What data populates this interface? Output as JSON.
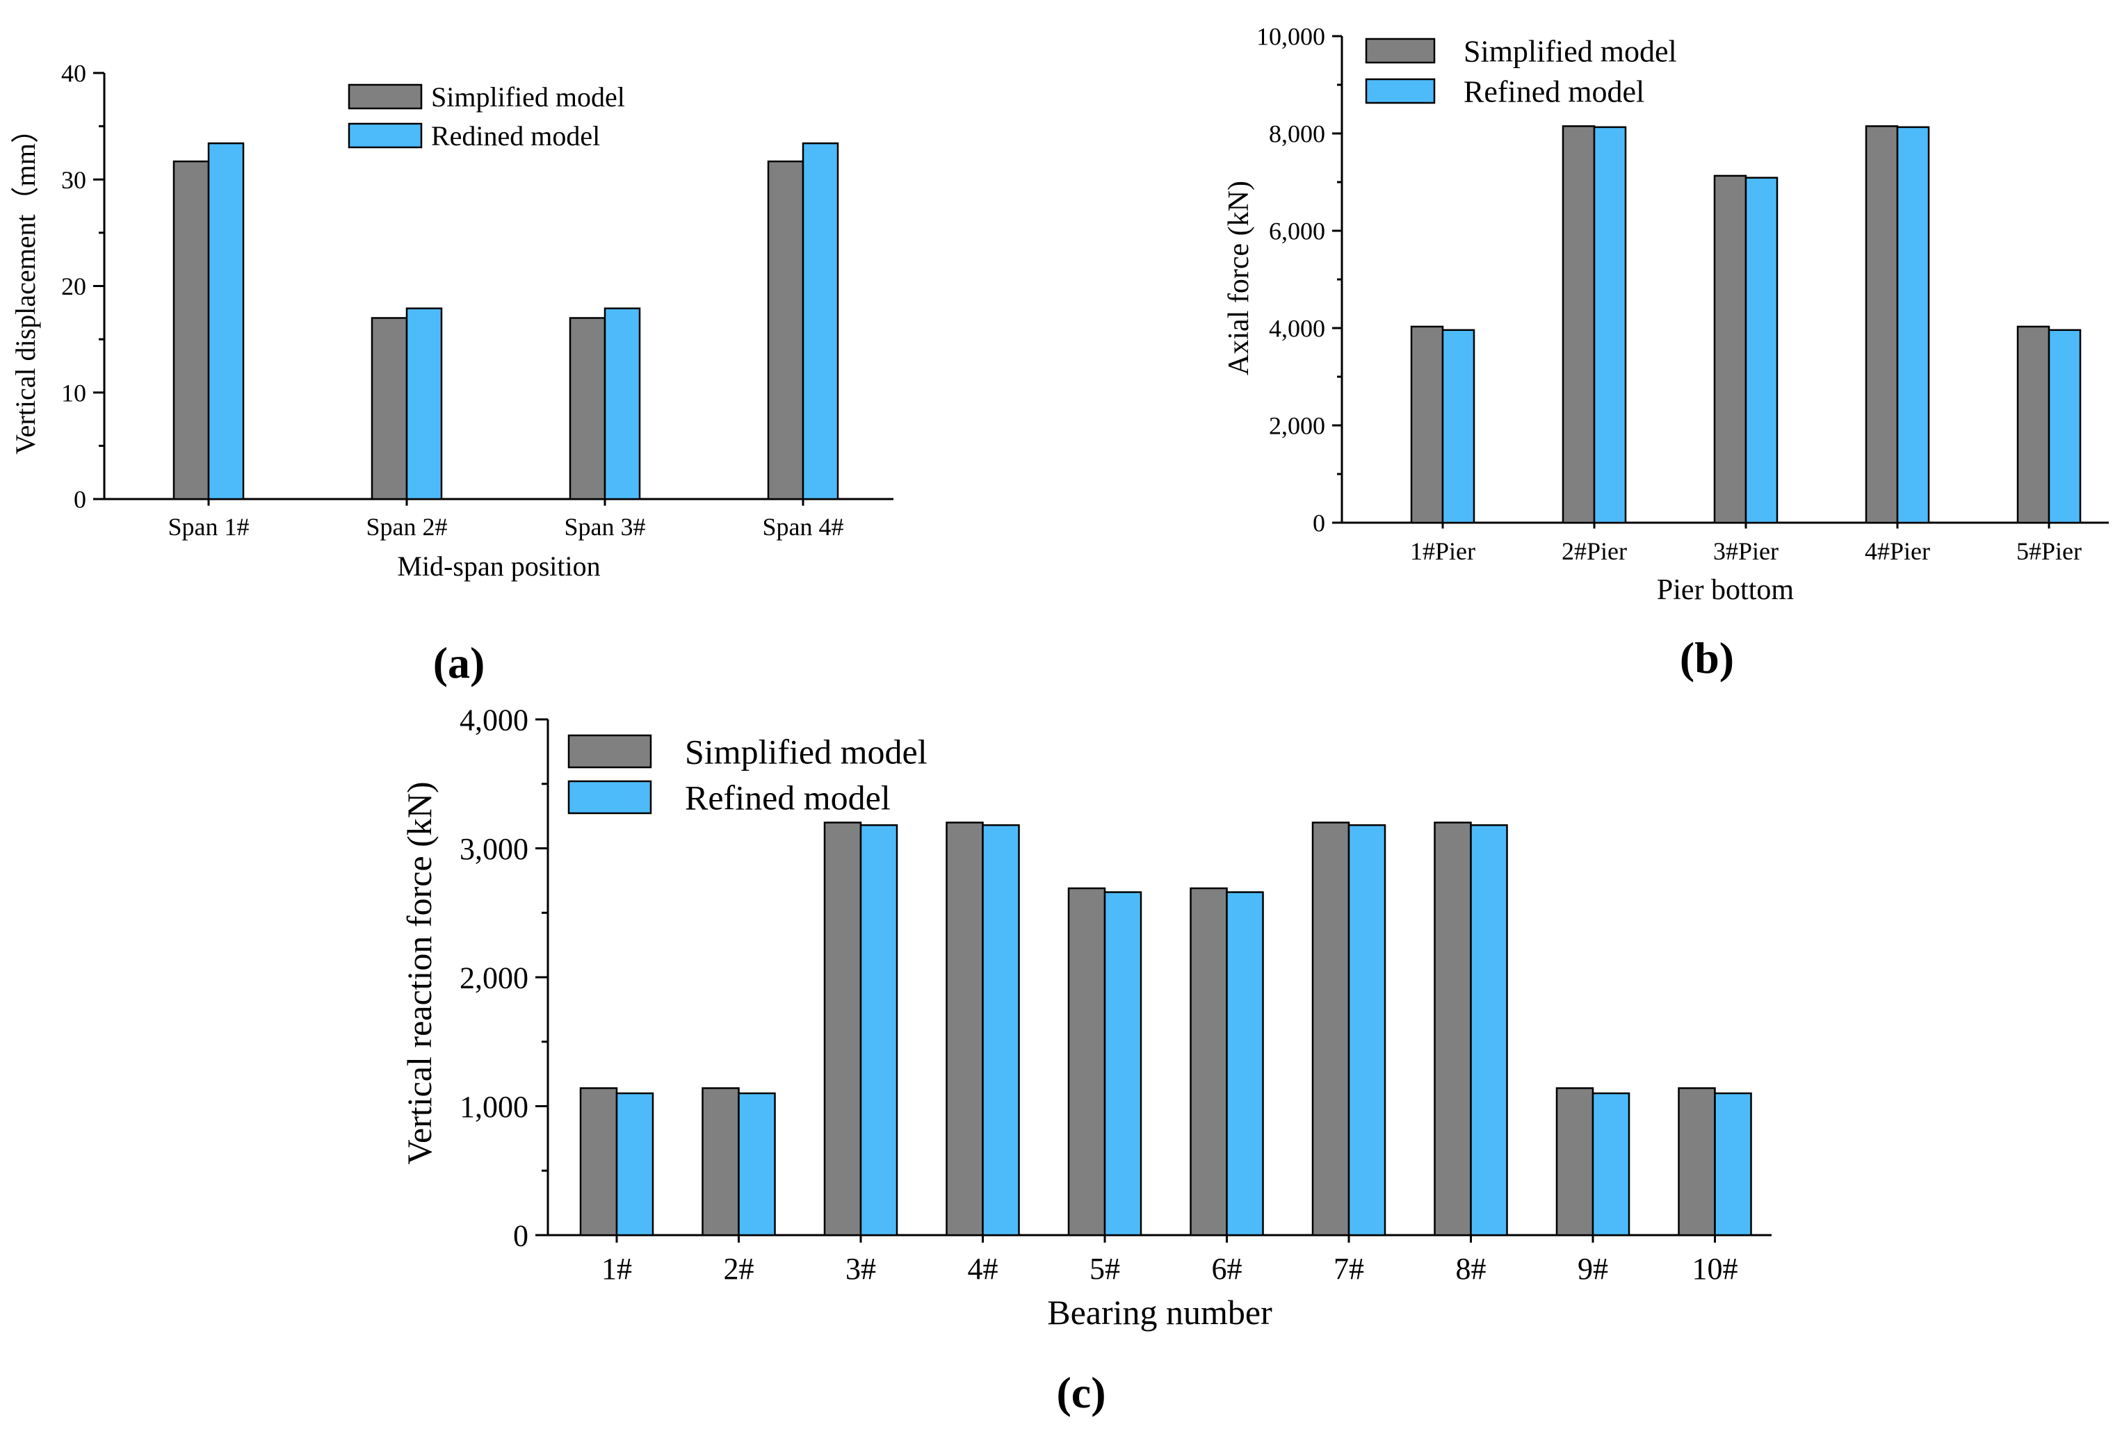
{
  "chart_data": [
    {
      "type": "bar",
      "panel_label": "(a)",
      "title": "",
      "xlabel": "Mid-span position",
      "ylabel": "Vertical displacement（mm）",
      "categories": [
        "Span 1#",
        "Span 2#",
        "Span 3#",
        "Span 4#"
      ],
      "ylim": [
        0,
        40
      ],
      "yticks": [
        0,
        10,
        20,
        30,
        40
      ],
      "ytick_labels": [
        "0",
        "10",
        "20",
        "30",
        "40"
      ],
      "grid": false,
      "legend_position": "top-center",
      "series": [
        {
          "name": "Simplified model",
          "color": "#808080",
          "values": [
            31.7,
            17.0,
            17.0,
            31.7
          ]
        },
        {
          "name": "Redined model",
          "color": "#4dbbfa",
          "values": [
            33.4,
            17.9,
            17.9,
            33.4
          ]
        }
      ]
    },
    {
      "type": "bar",
      "panel_label": "(b)",
      "title": "",
      "xlabel": "Pier bottom",
      "ylabel": "Axial force (kN)",
      "categories": [
        "1#Pier",
        "2#Pier",
        "3#Pier",
        "4#Pier",
        "5#Pier"
      ],
      "ylim": [
        0,
        10000
      ],
      "yticks": [
        0,
        2000,
        4000,
        6000,
        8000,
        10000
      ],
      "ytick_labels": [
        "0",
        "2,000",
        "4,000",
        "6,000",
        "8,000",
        "10,000"
      ],
      "grid": false,
      "legend_position": "top-left",
      "series": [
        {
          "name": "Simplified model",
          "color": "#808080",
          "values": [
            4030,
            8150,
            7130,
            8150,
            4030
          ]
        },
        {
          "name": "Refined model",
          "color": "#4dbbfa",
          "values": [
            3960,
            8130,
            7090,
            8130,
            3960
          ]
        }
      ]
    },
    {
      "type": "bar",
      "panel_label": "(c)",
      "title": "",
      "xlabel": "Bearing number",
      "ylabel": "Vertical reaction force (kN)",
      "categories": [
        "1#",
        "2#",
        "3#",
        "4#",
        "5#",
        "6#",
        "7#",
        "8#",
        "9#",
        "10#"
      ],
      "ylim": [
        0,
        4000
      ],
      "yticks": [
        0,
        1000,
        2000,
        3000,
        4000
      ],
      "ytick_labels": [
        "0",
        "1,000",
        "2,000",
        "3,000",
        "4,000"
      ],
      "grid": false,
      "legend_position": "top-left",
      "series": [
        {
          "name": "Simplified model",
          "color": "#808080",
          "values": [
            1140,
            1140,
            3200,
            3200,
            2690,
            2690,
            3200,
            3200,
            1140,
            1140
          ]
        },
        {
          "name": "Refined model",
          "color": "#4dbbfa",
          "values": [
            1100,
            1100,
            3180,
            3180,
            2660,
            2660,
            3180,
            3180,
            1100,
            1100
          ]
        }
      ]
    }
  ]
}
